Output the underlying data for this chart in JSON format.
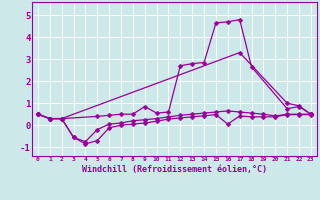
{
  "xlabel": "Windchill (Refroidissement éolien,°C)",
  "background_color": "#cce8e8",
  "grid_color": "#ffffff",
  "line_color": "#990099",
  "xlim": [
    -0.5,
    23.5
  ],
  "ylim": [
    -1.4,
    5.6
  ],
  "yticks": [
    -1,
    0,
    1,
    2,
    3,
    4,
    5
  ],
  "xticks": [
    0,
    1,
    2,
    3,
    4,
    5,
    6,
    7,
    8,
    9,
    10,
    11,
    12,
    13,
    14,
    15,
    16,
    17,
    18,
    19,
    20,
    21,
    22,
    23
  ],
  "line1_x": [
    0,
    1,
    2,
    5,
    6,
    7,
    8,
    9,
    10,
    11,
    12,
    13,
    14,
    15,
    16,
    17,
    18,
    21,
    22,
    23
  ],
  "line1_y": [
    0.5,
    0.3,
    0.3,
    0.4,
    0.45,
    0.5,
    0.5,
    0.85,
    0.55,
    0.6,
    2.7,
    2.8,
    2.85,
    4.65,
    4.7,
    4.8,
    2.65,
    0.75,
    0.85,
    0.5
  ],
  "line2_x": [
    0,
    1,
    2,
    3,
    4,
    5,
    6,
    7,
    8,
    9,
    10,
    11,
    12,
    13,
    14,
    15,
    16,
    17,
    18,
    19,
    20,
    21,
    22,
    23
  ],
  "line2_y": [
    0.5,
    0.3,
    0.3,
    -0.55,
    -0.75,
    -0.2,
    0.05,
    0.1,
    0.2,
    0.25,
    0.3,
    0.38,
    0.45,
    0.5,
    0.55,
    0.6,
    0.65,
    0.6,
    0.55,
    0.5,
    0.42,
    0.5,
    0.5,
    0.5
  ],
  "line3_x": [
    0,
    1,
    2,
    17,
    21,
    22,
    23
  ],
  "line3_y": [
    0.5,
    0.3,
    0.3,
    3.3,
    1.0,
    0.88,
    0.5
  ],
  "line4_x": [
    0,
    1,
    2,
    3,
    4,
    5,
    6,
    7,
    8,
    9,
    10,
    11,
    12,
    13,
    14,
    15,
    16,
    17,
    18,
    19,
    20,
    21,
    22,
    23
  ],
  "line4_y": [
    0.5,
    0.3,
    0.3,
    -0.55,
    -0.85,
    -0.7,
    -0.12,
    0.0,
    0.05,
    0.1,
    0.18,
    0.28,
    0.33,
    0.38,
    0.43,
    0.48,
    0.05,
    0.42,
    0.38,
    0.38,
    0.38,
    0.48,
    0.48,
    0.48
  ]
}
